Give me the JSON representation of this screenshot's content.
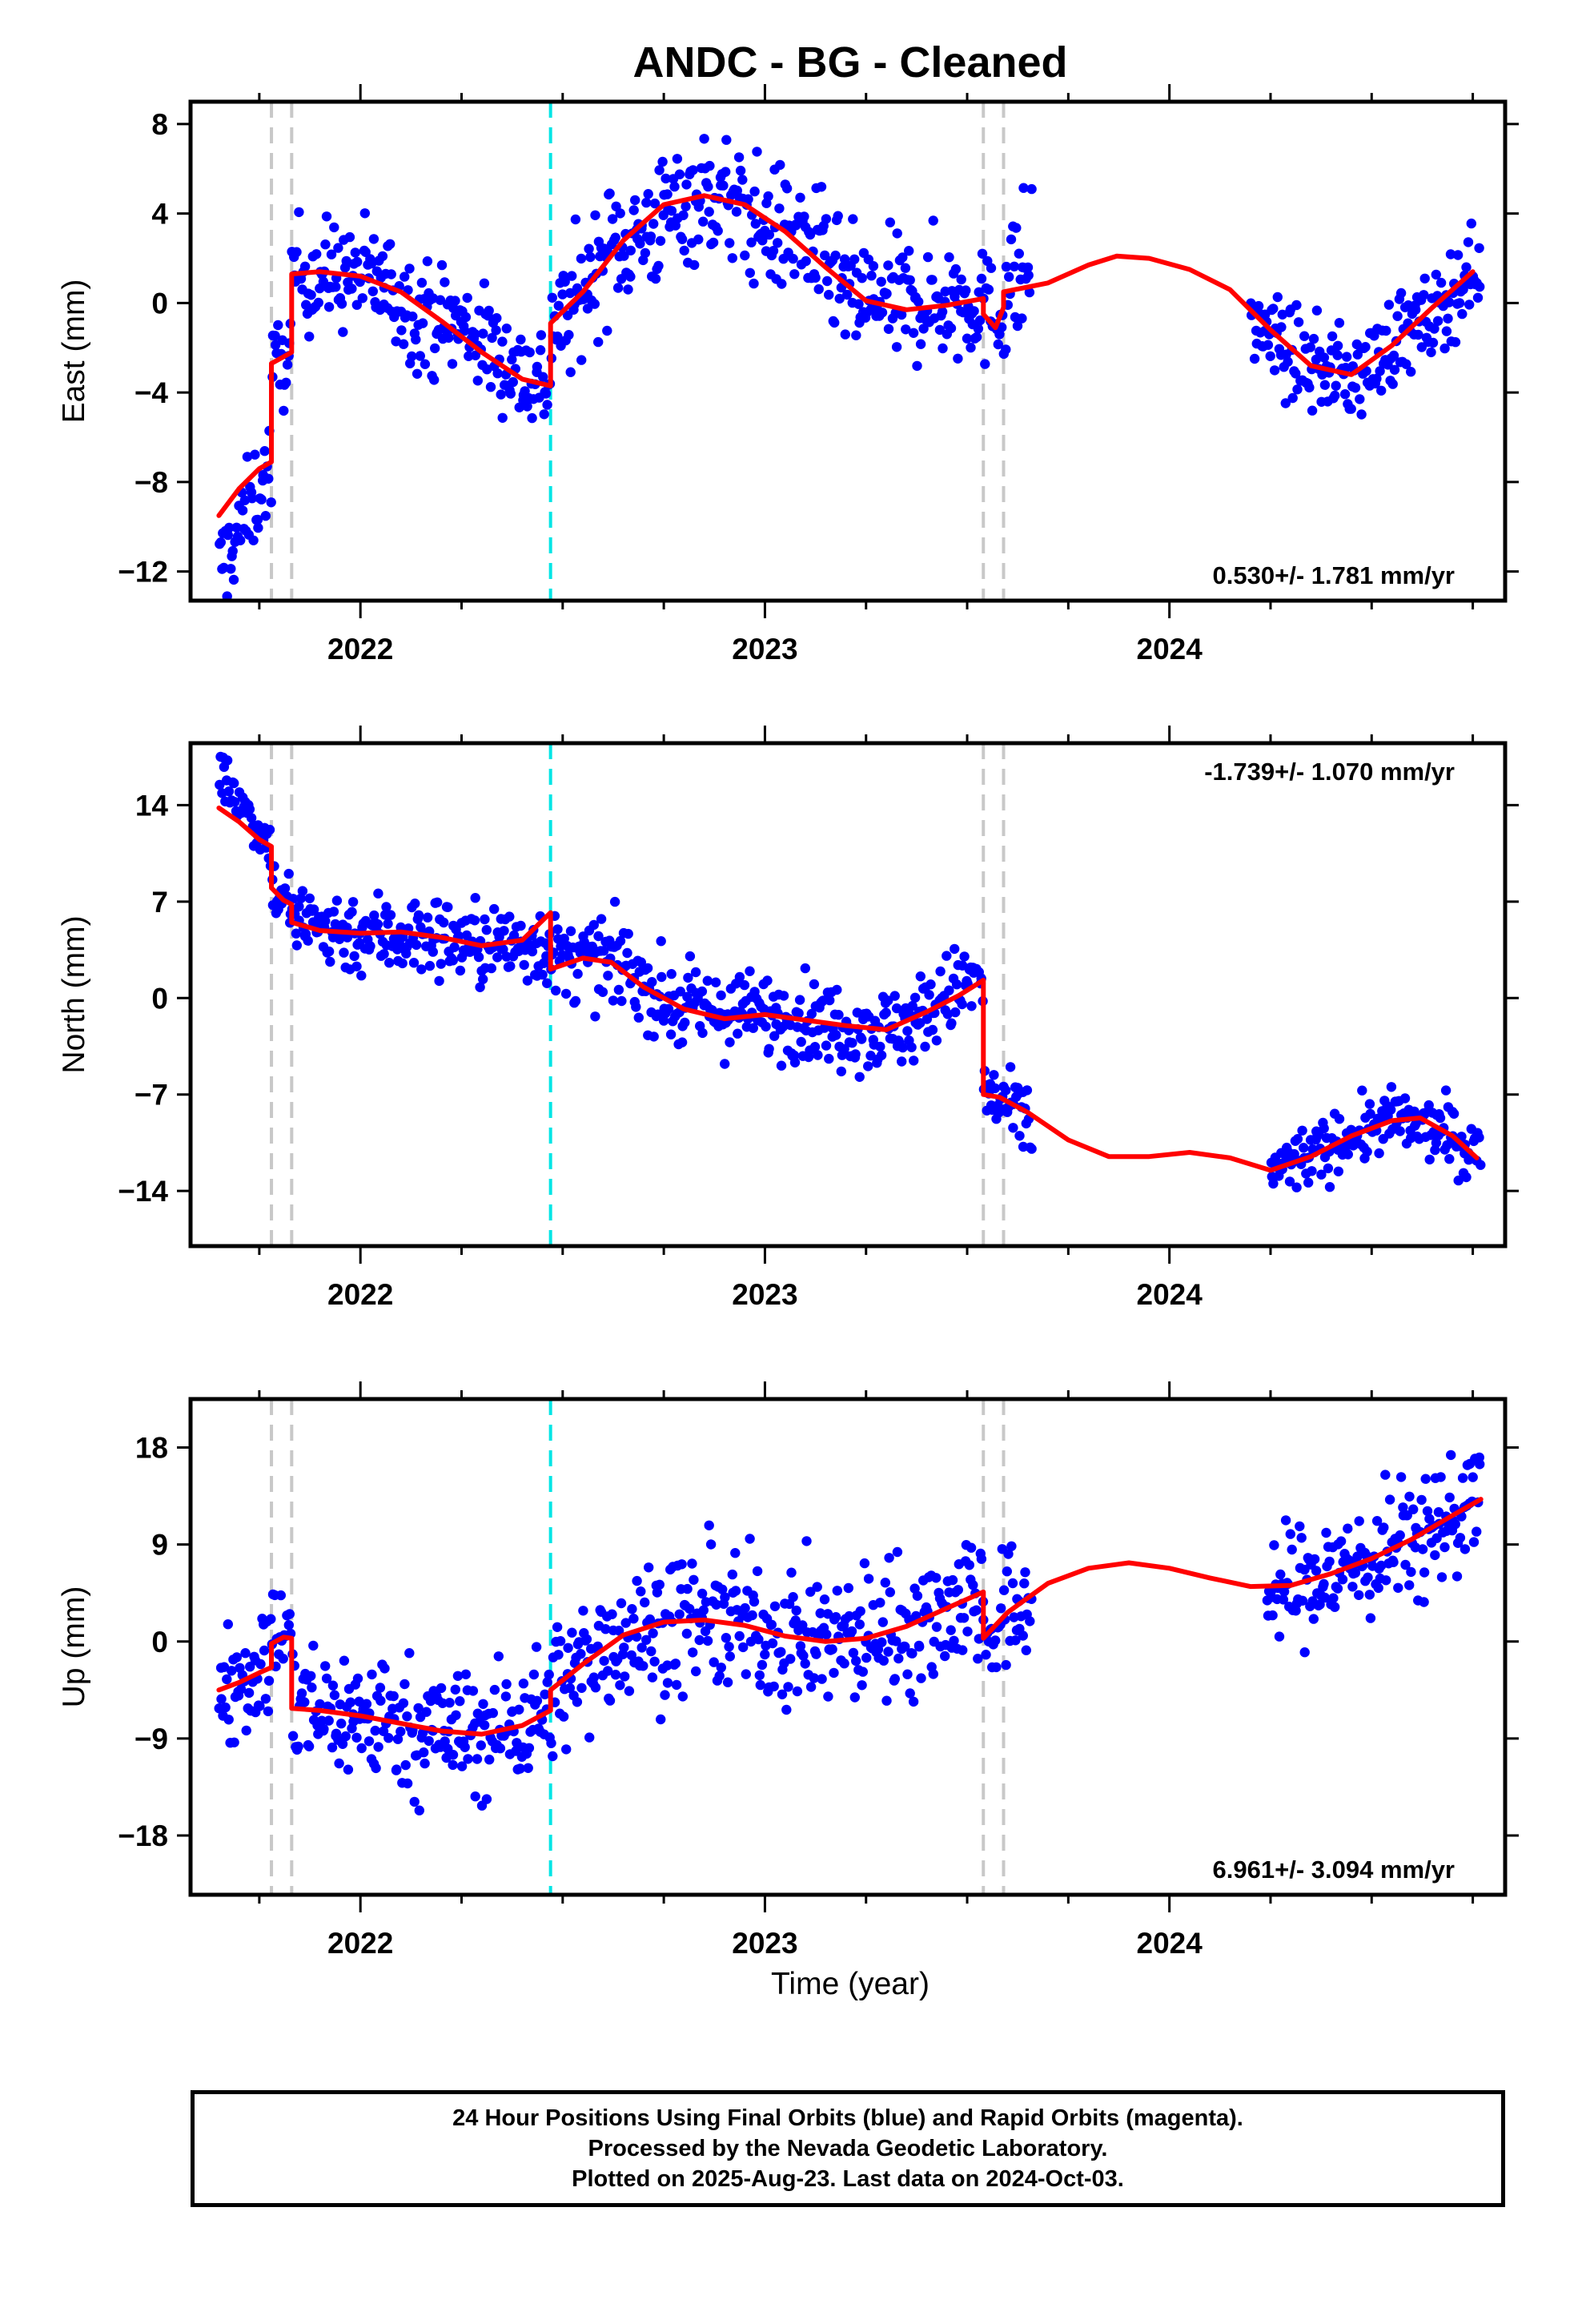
{
  "title": "ANDC  - BG - Cleaned",
  "footer": [
    "24 Hour Positions Using Final Orbits (blue) and Rapid Orbits (magenta).",
    "Processed by the Nevada Geodetic Laboratory.",
    "Plotted on 2025-Aug-23. Last data on 2024-Oct-03."
  ],
  "colors": {
    "data_points": "#0000ff",
    "model_fit": "#ff0000",
    "equipment_change": "#c8c8c8",
    "earthquake_marker": "#00e5e5"
  },
  "xlabel": "Time (year)",
  "x_ticks": [
    "2022",
    "2023",
    "2024"
  ],
  "chart_data": [
    {
      "type": "scatter",
      "id": "east",
      "ylabel": "East (mm)",
      "xlim": [
        2021.58,
        2024.83
      ],
      "ylim": [
        -13.3,
        9.0
      ],
      "y_ticks": [
        -12,
        -8,
        -4,
        0,
        4,
        8
      ],
      "rate": "0.530+/- 1.781 mm/yr",
      "rate_position": "bottom-right",
      "grey_lines": [
        2021.78,
        2021.83,
        2023.54,
        2023.59
      ],
      "cyan_lines": [
        2022.47
      ],
      "model": {
        "x": [
          2021.65,
          2021.7,
          2021.75,
          2021.78,
          2021.78,
          2021.8,
          2021.83,
          2021.83,
          2021.9,
          2022.0,
          2022.1,
          2022.2,
          2022.3,
          2022.4,
          2022.47,
          2022.47,
          2022.55,
          2022.65,
          2022.75,
          2022.85,
          2022.95,
          2023.05,
          2023.15,
          2023.25,
          2023.35,
          2023.45,
          2023.54,
          2023.54,
          2023.57,
          2023.59,
          2023.59,
          2023.7,
          2023.8,
          2023.87,
          2023.95,
          2024.05,
          2024.15,
          2024.25,
          2024.35,
          2024.45,
          2024.55,
          2024.65,
          2024.75
        ],
        "y": [
          -9.5,
          -8.3,
          -7.4,
          -7.1,
          -2.7,
          -2.5,
          -2.2,
          1.3,
          1.4,
          1.2,
          0.5,
          -0.8,
          -2.2,
          -3.4,
          -3.7,
          -0.9,
          0.5,
          2.8,
          4.4,
          4.8,
          4.4,
          3.2,
          1.6,
          0.1,
          -0.3,
          -0.1,
          0.2,
          -0.5,
          -1.1,
          -0.2,
          0.5,
          0.9,
          1.7,
          2.1,
          2.0,
          1.5,
          0.6,
          -1.2,
          -2.8,
          -3.2,
          -1.9,
          -0.2,
          1.4
        ]
      },
      "points": {
        "segments": [
          {
            "range": [
              2021.65,
              2021.78
            ],
            "start": -12.0,
            "end": -7.2,
            "scatter": 1.1
          },
          {
            "range": [
              2021.78,
              2021.83
            ],
            "start": -3.0,
            "end": -2.3,
            "scatter": 1.0
          },
          {
            "range": [
              2021.83,
              2022.47
            ],
            "anchors": [
              [
                2021.83,
                1.3
              ],
              [
                2022.0,
                1.2
              ],
              [
                2022.2,
                -0.8
              ],
              [
                2022.47,
                -3.5
              ]
            ],
            "scatter": 1.2
          },
          {
            "range": [
              2022.47,
              2023.54
            ],
            "anchors": [
              [
                2022.47,
                -1.0
              ],
              [
                2022.65,
                2.8
              ],
              [
                2022.85,
                4.8
              ],
              [
                2023.05,
                3.2
              ],
              [
                2023.25,
                0.1
              ],
              [
                2023.54,
                0.2
              ]
            ],
            "scatter": 1.4
          },
          {
            "range": [
              2023.54,
              2023.59
            ],
            "start": -0.5,
            "end": -0.3,
            "scatter": 1.2
          },
          {
            "range": [
              2023.59,
              2023.66
            ],
            "start": 0.6,
            "end": 2.0,
            "scatter": 1.6
          },
          {
            "range": [
              2024.2,
              2024.77
            ],
            "anchors": [
              [
                2024.2,
                -1.0
              ],
              [
                2024.35,
                -2.8
              ],
              [
                2024.45,
                -3.2
              ],
              [
                2024.6,
                -1.2
              ],
              [
                2024.77,
                1.4
              ]
            ],
            "scatter": 1.0
          }
        ]
      }
    },
    {
      "type": "scatter",
      "id": "north",
      "ylabel": "North (mm)",
      "xlim": [
        2021.58,
        2024.83
      ],
      "ylim": [
        -18.0,
        18.5
      ],
      "y_ticks": [
        -14,
        -7,
        0,
        7,
        14
      ],
      "rate": "-1.739+/- 1.070 mm/yr",
      "rate_position": "top-right",
      "grey_lines": [
        2021.78,
        2021.83,
        2023.54,
        2023.59
      ],
      "cyan_lines": [
        2022.47
      ],
      "model": {
        "x": [
          2021.65,
          2021.7,
          2021.75,
          2021.78,
          2021.78,
          2021.81,
          2021.83,
          2021.83,
          2021.9,
          2022.0,
          2022.1,
          2022.2,
          2022.3,
          2022.4,
          2022.47,
          2022.47,
          2022.55,
          2022.62,
          2022.7,
          2022.8,
          2022.9,
          2023.0,
          2023.1,
          2023.2,
          2023.3,
          2023.4,
          2023.48,
          2023.54,
          2023.54,
          2023.58,
          2023.65,
          2023.75,
          2023.85,
          2023.95,
          2024.05,
          2024.15,
          2024.25,
          2024.35,
          2024.45,
          2024.55,
          2024.62,
          2024.7,
          2024.76
        ],
        "y": [
          13.8,
          12.8,
          11.5,
          11.0,
          8.0,
          7.1,
          6.8,
          5.5,
          4.9,
          4.7,
          4.8,
          4.4,
          3.8,
          4.2,
          6.2,
          2.1,
          2.9,
          2.6,
          0.8,
          -0.8,
          -1.5,
          -1.2,
          -1.6,
          -2.0,
          -2.3,
          -1.0,
          0.2,
          1.3,
          -7.0,
          -7.2,
          -8.3,
          -10.3,
          -11.5,
          -11.5,
          -11.2,
          -11.6,
          -12.5,
          -11.5,
          -10.0,
          -8.9,
          -8.7,
          -10.0,
          -11.6
        ]
      },
      "points": {
        "segments": [
          {
            "range": [
              2021.65,
              2021.78
            ],
            "start": 16.5,
            "end": 11.0,
            "scatter": 0.9
          },
          {
            "range": [
              2021.78,
              2021.83
            ],
            "start": 8.0,
            "end": 6.8,
            "scatter": 1.2
          },
          {
            "range": [
              2021.83,
              2022.47
            ],
            "anchors": [
              [
                2021.83,
                5.5
              ],
              [
                2022.0,
                4.7
              ],
              [
                2022.2,
                4.4
              ],
              [
                2022.3,
                3.8
              ],
              [
                2022.47,
                4.0
              ]
            ],
            "scatter": 1.5
          },
          {
            "range": [
              2022.47,
              2023.54
            ],
            "anchors": [
              [
                2022.47,
                2.8
              ],
              [
                2022.62,
                2.6
              ],
              [
                2022.8,
                -0.8
              ],
              [
                2023.0,
                -1.2
              ],
              [
                2023.3,
                -2.3
              ],
              [
                2023.54,
                1.3
              ]
            ],
            "scatter": 1.5
          },
          {
            "range": [
              2023.54,
              2023.66
            ],
            "start": -7.0,
            "end": -9.2,
            "scatter": 1.3
          },
          {
            "range": [
              2024.25,
              2024.77
            ],
            "anchors": [
              [
                2024.25,
                -12.4
              ],
              [
                2024.35,
                -11.5
              ],
              [
                2024.45,
                -10.0
              ],
              [
                2024.55,
                -8.9
              ],
              [
                2024.65,
                -9.5
              ],
              [
                2024.77,
                -11.3
              ]
            ],
            "scatter": 1.1
          }
        ]
      }
    },
    {
      "type": "scatter",
      "id": "up",
      "ylabel": "Up (mm)",
      "xlim": [
        2021.58,
        2024.83
      ],
      "ylim": [
        -23.5,
        22.5
      ],
      "y_ticks": [
        -18,
        -9,
        0,
        9,
        18
      ],
      "rate": "6.961+/- 3.094 mm/yr",
      "rate_position": "bottom-right",
      "grey_lines": [
        2021.78,
        2021.83,
        2023.54,
        2023.59
      ],
      "cyan_lines": [
        2022.47
      ],
      "model": {
        "x": [
          2021.65,
          2021.7,
          2021.75,
          2021.78,
          2021.78,
          2021.81,
          2021.83,
          2021.83,
          2021.9,
          2022.0,
          2022.1,
          2022.2,
          2022.3,
          2022.4,
          2022.47,
          2022.47,
          2022.55,
          2022.65,
          2022.75,
          2022.85,
          2022.95,
          2023.05,
          2023.15,
          2023.25,
          2023.35,
          2023.45,
          2023.54,
          2023.54,
          2023.6,
          2023.7,
          2023.8,
          2023.9,
          2024.0,
          2024.1,
          2024.2,
          2024.3,
          2024.4,
          2024.5,
          2024.6,
          2024.7,
          2024.77
        ],
        "y": [
          -4.5,
          -3.8,
          -2.9,
          -2.4,
          -0.2,
          0.4,
          0.3,
          -6.2,
          -6.4,
          -6.9,
          -7.6,
          -8.3,
          -8.6,
          -7.8,
          -6.4,
          -4.5,
          -2.1,
          0.6,
          1.8,
          2.0,
          1.5,
          0.5,
          0.0,
          0.3,
          1.4,
          3.1,
          4.6,
          0.3,
          2.7,
          5.4,
          6.8,
          7.3,
          6.8,
          5.9,
          5.1,
          5.2,
          6.3,
          7.7,
          9.5,
          11.7,
          13.2
        ]
      },
      "points": {
        "segments": [
          {
            "range": [
              2021.65,
              2021.78
            ],
            "start": -4.0,
            "end": -2.0,
            "scatter": 2.6
          },
          {
            "range": [
              2021.78,
              2021.83
            ],
            "start": 0.5,
            "end": 1.0,
            "scatter": 2.4
          },
          {
            "range": [
              2021.83,
              2022.47
            ],
            "anchors": [
              [
                2021.83,
                -6.2
              ],
              [
                2022.0,
                -6.9
              ],
              [
                2022.2,
                -8.3
              ],
              [
                2022.3,
                -8.6
              ],
              [
                2022.47,
                -6.4
              ]
            ],
            "scatter": 3.0
          },
          {
            "range": [
              2022.47,
              2023.54
            ],
            "anchors": [
              [
                2022.47,
                -4.5
              ],
              [
                2022.65,
                0.6
              ],
              [
                2022.85,
                2.0
              ],
              [
                2023.15,
                0.0
              ],
              [
                2023.35,
                1.4
              ],
              [
                2023.54,
                4.6
              ]
            ],
            "scatter": 3.2
          },
          {
            "range": [
              2023.54,
              2023.66
            ],
            "start": 0.5,
            "end": 4.0,
            "scatter": 3.0
          },
          {
            "range": [
              2024.24,
              2024.77
            ],
            "anchors": [
              [
                2024.24,
                4.5
              ],
              [
                2024.35,
                5.5
              ],
              [
                2024.45,
                7.0
              ],
              [
                2024.6,
                9.5
              ],
              [
                2024.77,
                13.2
              ]
            ],
            "scatter": 2.8
          }
        ]
      }
    }
  ]
}
